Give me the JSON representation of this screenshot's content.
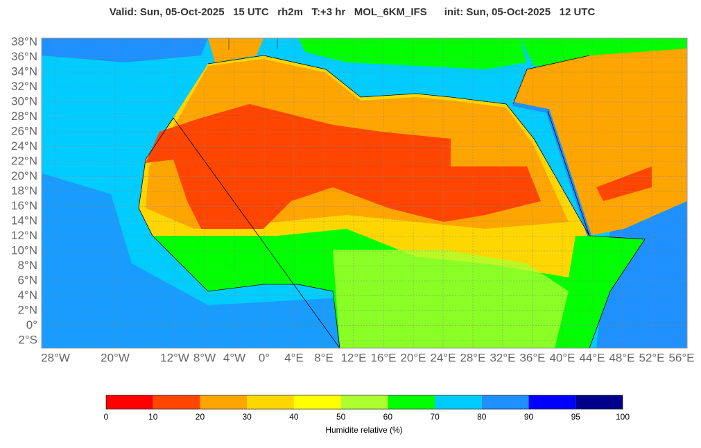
{
  "header": {
    "title": "Valid: Sun, 05-Oct-2025   15 UTC   rh2m   T:+3 hr   MOL_6KM_IFS      init: Sun, 05-Oct-2025   12 UTC"
  },
  "map": {
    "lat_labels": [
      {
        "value": 38,
        "label": "38°N"
      },
      {
        "value": 36,
        "label": "36°N"
      },
      {
        "value": 34,
        "label": "34°N"
      },
      {
        "value": 32,
        "label": "32°N"
      },
      {
        "value": 30,
        "label": "30°N"
      },
      {
        "value": 28,
        "label": "28°N"
      },
      {
        "value": 26,
        "label": "26°N"
      },
      {
        "value": 24,
        "label": "24°N"
      },
      {
        "value": 22,
        "label": "22°N"
      },
      {
        "value": 20,
        "label": "20°N"
      },
      {
        "value": 18,
        "label": "18°N"
      },
      {
        "value": 16,
        "label": "16°N"
      },
      {
        "value": 14,
        "label": "14°N"
      },
      {
        "value": 12,
        "label": "12°N"
      },
      {
        "value": 10,
        "label": "10°N"
      },
      {
        "value": 8,
        "label": "8°N"
      },
      {
        "value": 6,
        "label": "6°N"
      },
      {
        "value": 4,
        "label": "4°N"
      },
      {
        "value": 2,
        "label": "2°N"
      },
      {
        "value": 0,
        "label": "0°"
      },
      {
        "value": -2,
        "label": "2°S"
      }
    ],
    "lon_labels": [
      {
        "value": -28,
        "label": "28°W"
      },
      {
        "value": -20,
        "label": "20°W"
      },
      {
        "value": -12,
        "label": "12°W"
      },
      {
        "value": -8,
        "label": "8°W"
      },
      {
        "value": -4,
        "label": "4°W"
      },
      {
        "value": 0,
        "label": "0°"
      },
      {
        "value": 4,
        "label": "4°E"
      },
      {
        "value": 8,
        "label": "8°E"
      },
      {
        "value": 12,
        "label": "12°E"
      },
      {
        "value": 16,
        "label": "16°E"
      },
      {
        "value": 20,
        "label": "20°E"
      },
      {
        "value": 24,
        "label": "24°E"
      },
      {
        "value": 28,
        "label": "28°E"
      },
      {
        "value": 32,
        "label": "32°E"
      },
      {
        "value": 36,
        "label": "36°E"
      },
      {
        "value": 40,
        "label": "40°E"
      },
      {
        "value": 44,
        "label": "44°E"
      },
      {
        "value": 48,
        "label": "48°E"
      },
      {
        "value": 52,
        "label": "52°E"
      },
      {
        "value": 56,
        "label": "56°E"
      }
    ]
  },
  "colorbar": {
    "bounds": [
      0,
      10,
      20,
      30,
      40,
      50,
      60,
      70,
      80,
      90,
      95,
      100
    ],
    "colors": [
      "#ff0000",
      "#ff4500",
      "#ffa500",
      "#ffd700",
      "#ffff00",
      "#adff2f",
      "#00ff00",
      "#00ccff",
      "#1e90ff",
      "#0000ff",
      "#00008b"
    ],
    "label": "Humidite relative (%)"
  }
}
